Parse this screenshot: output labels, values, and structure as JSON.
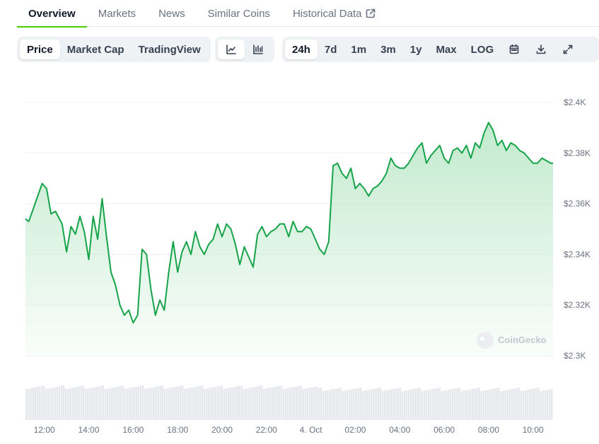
{
  "tabs": [
    {
      "label": "Overview",
      "active": true
    },
    {
      "label": "Markets",
      "active": false
    },
    {
      "label": "News",
      "active": false
    },
    {
      "label": "Similar Coins",
      "active": false
    },
    {
      "label": "Historical Data",
      "active": false,
      "external": true
    }
  ],
  "toolbar": {
    "metric_options": [
      {
        "label": "Price",
        "active": true
      },
      {
        "label": "Market Cap",
        "active": false
      },
      {
        "label": "TradingView",
        "active": false
      }
    ],
    "chart_style_options": [
      {
        "icon": "line-chart-icon",
        "active": true
      },
      {
        "icon": "candlestick-chart-icon",
        "active": false
      }
    ],
    "range_options": [
      {
        "label": "24h",
        "active": true
      },
      {
        "label": "7d",
        "active": false
      },
      {
        "label": "1m",
        "active": false
      },
      {
        "label": "3m",
        "active": false
      },
      {
        "label": "1y",
        "active": false
      },
      {
        "label": "Max",
        "active": false
      },
      {
        "label": "LOG",
        "active": false
      }
    ],
    "action_icons": [
      "calendar-icon",
      "download-icon",
      "fullscreen-icon"
    ]
  },
  "watermark": "CoinGecko",
  "colors": {
    "accent": "#4bcc00",
    "line": "#16a34a",
    "area_top": "#bfe9cb",
    "volume": "#e5e7eb"
  },
  "chart_data": {
    "type": "area",
    "title": "",
    "xlabel": "",
    "ylabel": "",
    "x_ticks": [
      "12:00",
      "14:00",
      "16:00",
      "18:00",
      "20:00",
      "22:00",
      "4. Oct",
      "02:00",
      "04:00",
      "06:00",
      "08:00",
      "10:00"
    ],
    "y_ticks": [
      "$2.3K",
      "$2.32K",
      "$2.34K",
      "$2.36K",
      "$2.38K",
      "$2.4K"
    ],
    "ylim": [
      2300,
      2400
    ],
    "x_range_hours": [
      11.15,
      34.9
    ],
    "grid": true,
    "legend": "none",
    "series": [
      {
        "x": [
          11.15,
          11.3,
          11.5,
          11.7,
          11.9,
          12.1,
          12.2,
          12.3,
          12.5,
          12.8,
          13.0,
          13.2,
          13.4,
          13.6,
          13.8,
          14.0,
          14.2,
          14.4,
          14.6,
          14.8,
          15.0,
          15.2,
          15.4,
          15.6,
          15.8,
          16.0,
          16.2,
          16.4,
          16.6,
          16.8,
          17.0,
          17.2,
          17.4,
          17.6,
          17.8,
          18.0,
          18.2,
          18.4,
          18.6,
          18.8,
          19.0,
          19.2,
          19.4,
          19.6,
          19.8,
          20.0,
          20.2,
          20.4,
          20.6,
          20.8,
          21.0,
          21.2,
          21.4,
          21.6,
          21.8,
          22.0,
          22.2,
          22.4,
          22.6,
          22.8,
          23.0,
          23.2,
          23.4,
          23.6,
          23.8,
          24.0,
          24.2,
          24.4,
          24.6,
          24.8,
          25.0,
          25.2,
          25.4,
          25.6,
          25.8,
          26.0,
          26.2,
          26.4,
          26.6,
          26.8,
          27.0,
          27.2,
          27.4,
          27.6,
          27.8,
          28.0,
          28.2,
          28.4,
          28.6,
          28.8,
          29.0,
          29.2,
          29.4,
          29.6,
          29.8,
          30.0,
          30.2,
          30.4,
          30.6,
          30.8,
          31.0,
          31.2,
          31.4,
          31.6,
          31.8,
          32.0,
          32.2,
          32.4,
          32.6,
          32.8,
          33.0,
          33.2,
          33.4,
          33.6,
          33.8,
          34.0,
          34.2,
          34.4,
          34.6,
          34.8,
          34.9
        ],
        "y": [
          2354,
          2353,
          2358,
          2363,
          2368,
          2366,
          2361,
          2356,
          2357,
          2352,
          2341,
          2351,
          2348,
          2355,
          2349,
          2338,
          2355,
          2346,
          2362,
          2347,
          2333,
          2328,
          2320,
          2316,
          2318,
          2313,
          2316,
          2342,
          2340,
          2326,
          2316,
          2322,
          2318,
          2333,
          2345,
          2333,
          2341,
          2345,
          2340,
          2349,
          2343,
          2340,
          2344,
          2346,
          2352,
          2347,
          2352,
          2350,
          2344,
          2336,
          2343,
          2339,
          2335,
          2348,
          2351,
          2347,
          2349,
          2350,
          2352,
          2352,
          2347,
          2353,
          2349,
          2349,
          2351,
          2350,
          2346,
          2342,
          2340,
          2345,
          2375,
          2376,
          2372,
          2370,
          2374,
          2366,
          2368,
          2366,
          2363,
          2366,
          2367,
          2369,
          2372,
          2378,
          2375,
          2374,
          2374,
          2376,
          2379,
          2382,
          2384,
          2376,
          2379,
          2381,
          2383,
          2378,
          2376,
          2381,
          2382,
          2380,
          2383,
          2378,
          2384,
          2382,
          2388,
          2392,
          2389,
          2383,
          2385,
          2381,
          2384,
          2383,
          2381,
          2380,
          2378,
          2376,
          2376,
          2378,
          2377,
          2376,
          2376
        ]
      }
    ],
    "volume_bars": 240
  }
}
